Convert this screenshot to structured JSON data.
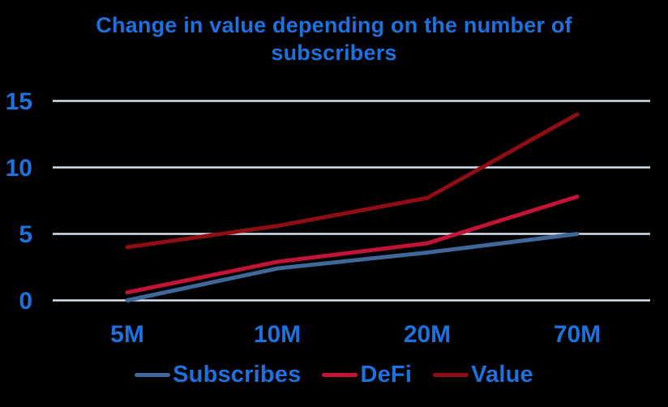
{
  "header": {
    "title_line1": "Change in value depending on the number of",
    "title_line2": "subscribers"
  },
  "colors": {
    "background": "#000000",
    "text_blue": "#1F72DE",
    "gridline": "#D6E1F2",
    "subscribes_line": "#3F6899",
    "defi_line": "#C31438",
    "value_line": "#8E0E14"
  },
  "chart_data": {
    "type": "line",
    "title": "Change in value depending on the number of subscribers",
    "categories": [
      "5M",
      "10M",
      "20M",
      "70M"
    ],
    "series": [
      {
        "name": "Subscribes",
        "color": "#3F6899",
        "values": [
          0,
          2.4,
          3.6,
          5
        ]
      },
      {
        "name": "DeFi",
        "color": "#C31438",
        "values": [
          0.6,
          2.9,
          4.3,
          7.8
        ]
      },
      {
        "name": "Value",
        "color": "#8E0E14",
        "values": [
          4,
          5.6,
          7.7,
          14
        ]
      }
    ],
    "xlabel": "",
    "ylabel": "",
    "y_ticks": [
      0,
      5,
      10,
      15
    ],
    "ylim": [
      0,
      15
    ],
    "grid": "horizontal-only",
    "legend_position": "bottom"
  }
}
